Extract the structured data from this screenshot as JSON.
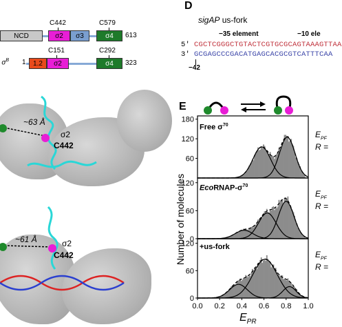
{
  "panel_c": {
    "row1": {
      "ncd": "NCD",
      "s2": "σ2",
      "s3": "σ3",
      "s4": "σ4",
      "end": "613",
      "c1": "C442",
      "c2": "C579"
    },
    "row2": {
      "prefix": "b σ",
      "prefix_sup": "B",
      "start": "1",
      "s12": "1.2",
      "s2": "σ2",
      "s4": "σ4",
      "end": "323",
      "c1": "C151",
      "c2": "C292"
    },
    "colors": {
      "ncd": "#c8c8c8",
      "s12": "#e84a1c",
      "s2": "#e81ed6",
      "s3": "#7a9fd0",
      "s4": "#1e7a2a",
      "linker": "#86a9d6"
    }
  },
  "panel_struct_top": {
    "distance": "~63 Å",
    "domain": "σ2",
    "residue": "C442"
  },
  "panel_struct_bottom": {
    "distance": "~61 Å",
    "domain": "σ2",
    "residue": "C442"
  },
  "panel_d": {
    "letter": "D",
    "title_italic": "sigAP",
    "title_rest": " us-fork",
    "label_35": "−35 element",
    "label_10": "−10 ele",
    "strand_top_prime": "5'",
    "strand_bottom_prime": "3'",
    "strand_top": "CGCTCGGGCTGTACTCGTGCGCAGTAAAGTTAA",
    "strand_bottom": "GCGAGCCCGACATGAGCACGCGTCATTTCAA",
    "pos_label": "−42",
    "colors": {
      "top": "#c0323c",
      "bottom": "#3b45a8"
    }
  },
  "panel_e": {
    "letter": "E",
    "y_label": "Number of molecules",
    "x_label": "E",
    "x_label_sub": "PR",
    "right_labels": [
      "E",
      "R ="
    ],
    "right_label_sub": "PF",
    "subpanels": [
      {
        "name": "Free σ",
        "sup": "70",
        "italic": ""
      },
      {
        "name": "RNAP-σ",
        "sup": "70",
        "italic": "Eco"
      },
      {
        "name": "+us-fork",
        "sup": "",
        "italic": ""
      }
    ]
  },
  "chart_data": {
    "type": "bar",
    "subtype": "histogram with gaussian fits",
    "x_ticks": [
      0.0,
      0.2,
      0.4,
      0.6,
      0.8,
      1.0
    ],
    "xlim": [
      0.0,
      1.0
    ],
    "xlabel": "EPR",
    "ylabel": "Number of molecules",
    "panels": [
      {
        "label": "Free σ70",
        "ylim": [
          0,
          190
        ],
        "y_ticks": [
          60,
          120,
          180
        ],
        "components": [
          {
            "mu": 0.58,
            "sigma": 0.08,
            "amp": 95
          },
          {
            "mu": 0.81,
            "sigma": 0.07,
            "amp": 125
          }
        ]
      },
      {
        "label": "EcoRNAP-σ70",
        "ylim": [
          0,
          130
        ],
        "y_ticks": [
          0,
          60,
          120
        ],
        "components": [
          {
            "mu": 0.42,
            "sigma": 0.08,
            "amp": 18
          },
          {
            "mu": 0.63,
            "sigma": 0.08,
            "amp": 55
          },
          {
            "mu": 0.8,
            "sigma": 0.07,
            "amp": 80
          }
        ]
      },
      {
        "label": "+us-fork",
        "ylim": [
          0,
          130
        ],
        "y_ticks": [
          0,
          60,
          120
        ],
        "components": [
          {
            "mu": 0.37,
            "sigma": 0.08,
            "amp": 30
          },
          {
            "mu": 0.61,
            "sigma": 0.11,
            "amp": 85
          },
          {
            "mu": 0.83,
            "sigma": 0.06,
            "amp": 25
          }
        ]
      }
    ]
  }
}
